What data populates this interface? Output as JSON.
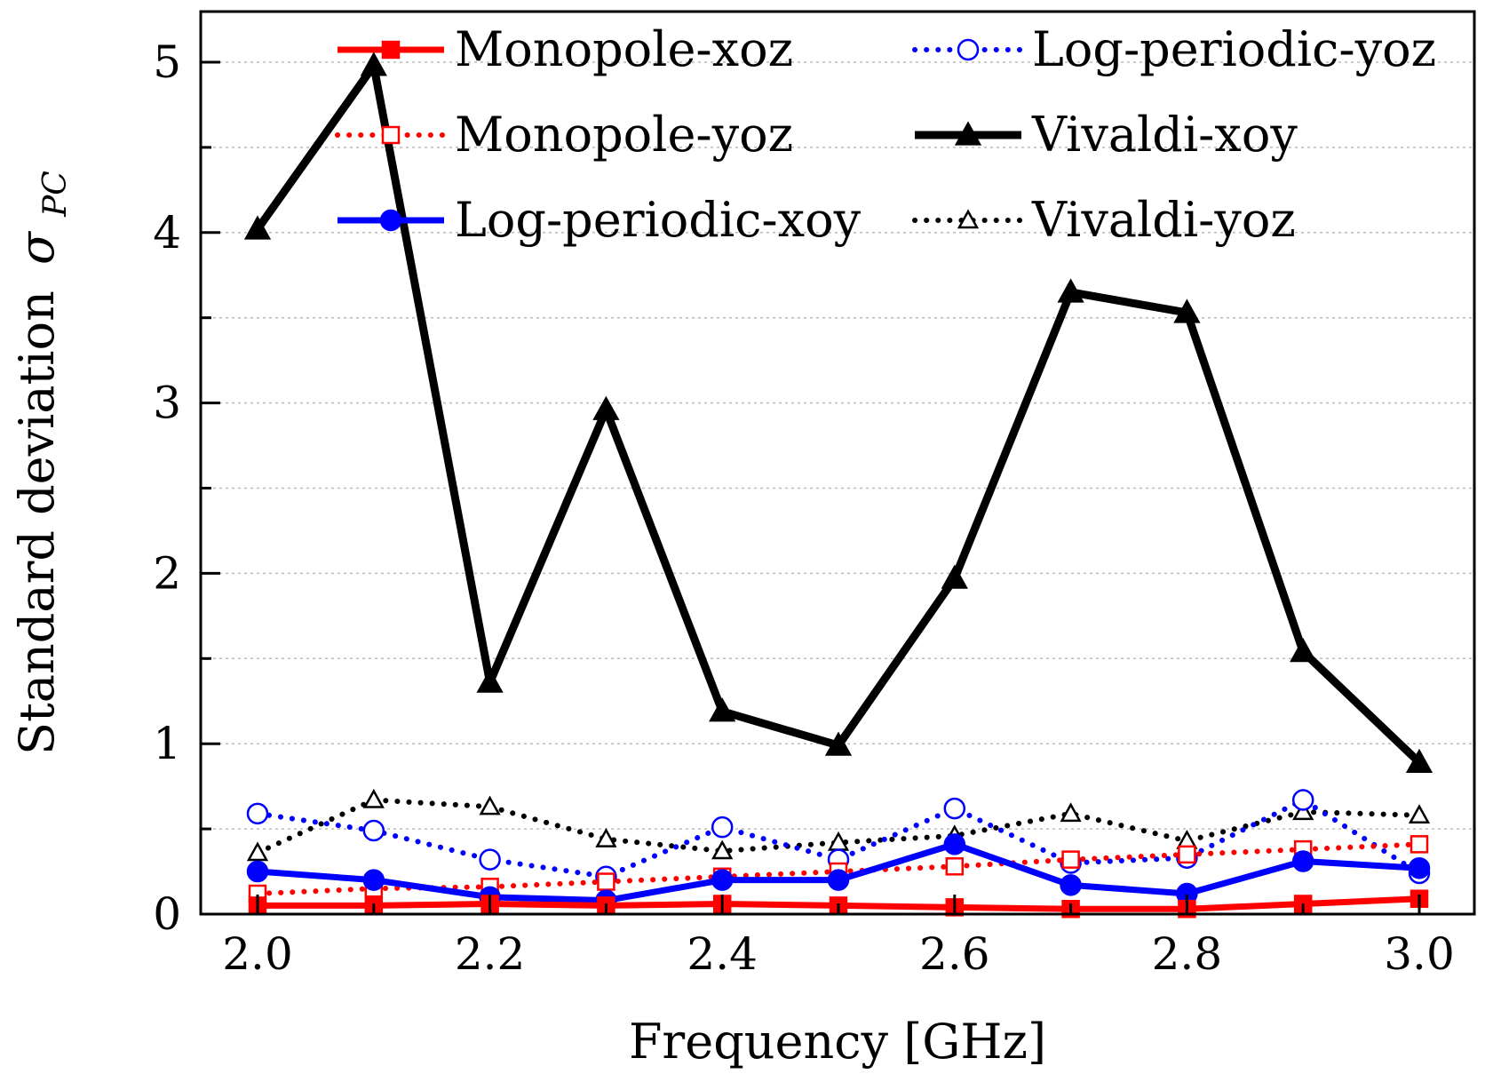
{
  "chart_data": {
    "type": "line",
    "title": "",
    "xlabel": "Frequency [GHz]",
    "ylabel": "Standard deviation",
    "ylabel_symbol": "σ",
    "ylabel_subscript": "PC",
    "xlim": [
      2.0,
      3.0
    ],
    "ylim": [
      0,
      5.2
    ],
    "x_ticks": [
      2.0,
      2.2,
      2.4,
      2.6,
      2.8,
      3.0
    ],
    "x_tick_labels": [
      "2.0",
      "2.2",
      "2.4",
      "2.6",
      "2.8",
      "3.0"
    ],
    "y_ticks": [
      0,
      1,
      2,
      3,
      4,
      5
    ],
    "y_tick_labels": [
      "0",
      "1",
      "2",
      "3",
      "4",
      "5"
    ],
    "grid": true,
    "legend_position": "top",
    "x": [
      2.0,
      2.1,
      2.2,
      2.3,
      2.4,
      2.5,
      2.6,
      2.7,
      2.8,
      2.9,
      3.0
    ],
    "series": [
      {
        "name": "Monopole-xoz",
        "color": "#ff0000",
        "line": "solid",
        "marker": "square-filled",
        "values": [
          0.05,
          0.05,
          0.06,
          0.05,
          0.06,
          0.05,
          0.04,
          0.03,
          0.03,
          0.06,
          0.09
        ]
      },
      {
        "name": "Monopole-yoz",
        "color": "#ff0000",
        "line": "dotted",
        "marker": "square-open",
        "values": [
          0.12,
          0.15,
          0.16,
          0.19,
          0.22,
          0.25,
          0.28,
          0.32,
          0.35,
          0.38,
          0.41
        ]
      },
      {
        "name": "Log-periodic-xoy",
        "color": "#0000ff",
        "line": "solid",
        "marker": "circle-filled",
        "values": [
          0.25,
          0.2,
          0.1,
          0.08,
          0.2,
          0.2,
          0.41,
          0.17,
          0.12,
          0.31,
          0.27
        ]
      },
      {
        "name": "Log-periodic-yoz",
        "color": "#0000ff",
        "line": "dotted",
        "marker": "circle-open",
        "values": [
          0.59,
          0.49,
          0.32,
          0.22,
          0.51,
          0.32,
          0.62,
          0.3,
          0.33,
          0.67,
          0.24
        ]
      },
      {
        "name": "Vivaldi-xoy",
        "color": "#000000",
        "line": "solid",
        "marker": "triangle-filled",
        "values": [
          4.02,
          4.98,
          1.36,
          2.96,
          1.19,
          0.99,
          1.97,
          3.65,
          3.53,
          1.54,
          0.89
        ]
      },
      {
        "name": "Vivaldi-yoz",
        "color": "#000000",
        "line": "dotted",
        "marker": "triangle-open",
        "values": [
          0.36,
          0.67,
          0.63,
          0.44,
          0.37,
          0.42,
          0.46,
          0.59,
          0.43,
          0.6,
          0.58
        ]
      }
    ]
  }
}
